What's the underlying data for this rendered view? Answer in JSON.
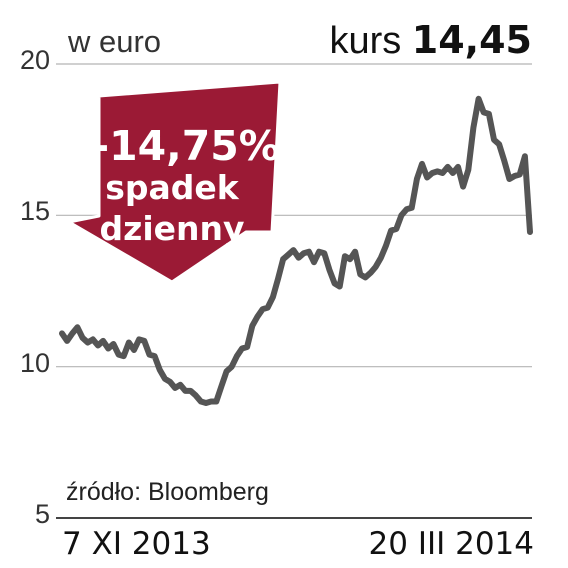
{
  "header": {
    "unit_label": "w euro",
    "price_label": "kurs",
    "price_value": "14,45"
  },
  "callout": {
    "change": "-14,75%",
    "line1": "spadek",
    "line2": "dzienny",
    "color": "#9b1a35"
  },
  "source": "źródło: Bloomberg",
  "chart_data": {
    "type": "line",
    "title": "",
    "xlabel": "",
    "ylabel": "w euro",
    "ylim": [
      5,
      20
    ],
    "yticks": [
      20,
      15,
      10,
      5
    ],
    "x_start_label": "7 XI 2013",
    "x_end_label": "20 III 2014",
    "grid": true,
    "line_color": "#555555",
    "series": [
      {
        "values": [
          11.1,
          10.85,
          11.1,
          11.3,
          10.95,
          10.8,
          10.9,
          10.7,
          10.85,
          10.6,
          10.75,
          10.4,
          10.35,
          10.8,
          10.55,
          10.9,
          10.85,
          10.4,
          10.35,
          9.9,
          9.6,
          9.5,
          9.3,
          9.4,
          9.2,
          9.2,
          9.05,
          8.85,
          8.8,
          8.85,
          8.85,
          9.35,
          9.85,
          10.0,
          10.35,
          10.6,
          10.65,
          11.35,
          11.65,
          11.9,
          11.95,
          12.3,
          12.9,
          13.55,
          13.7,
          13.85,
          13.6,
          13.75,
          13.8,
          13.45,
          13.8,
          13.75,
          13.2,
          12.75,
          12.65,
          13.65,
          13.55,
          13.8,
          13.05,
          12.95,
          13.1,
          13.3,
          13.6,
          14.0,
          14.5,
          14.55,
          15.0,
          15.2,
          15.25,
          16.2,
          16.7,
          16.25,
          16.4,
          16.45,
          16.4,
          16.6,
          16.4,
          16.6,
          15.95,
          16.5,
          17.9,
          18.85,
          18.4,
          18.35,
          17.5,
          17.35,
          16.8,
          16.2,
          16.3,
          16.35,
          16.95,
          14.45
        ]
      }
    ]
  }
}
